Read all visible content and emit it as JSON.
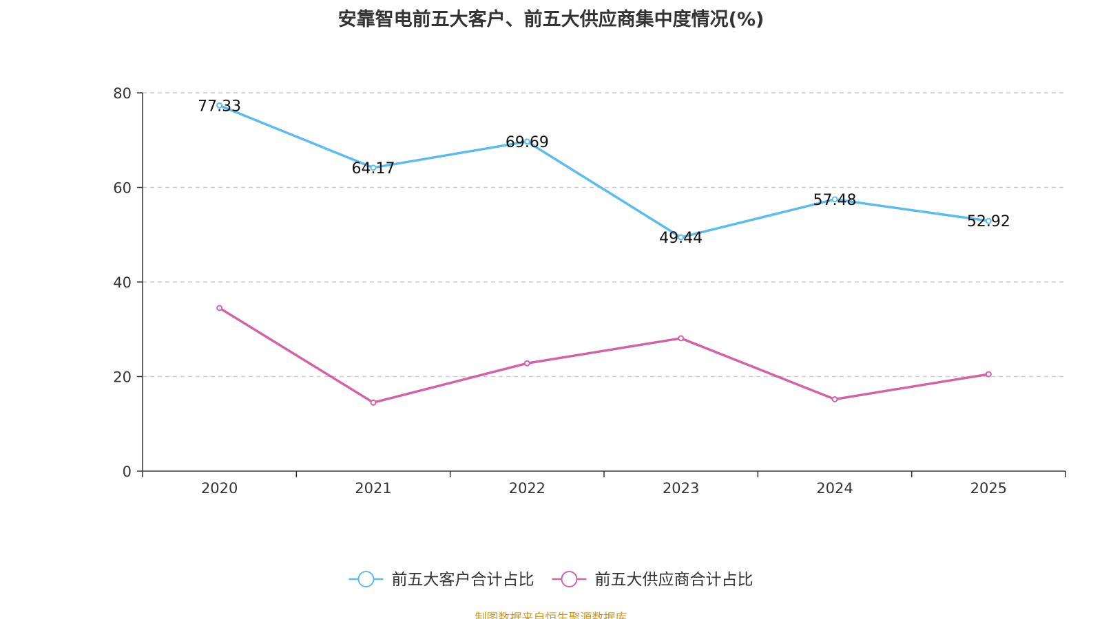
{
  "chart_data": {
    "type": "line",
    "title": "安靠智电前五大客户、前五大供应商集中度情况(%)",
    "categories": [
      "2020",
      "2021",
      "2022",
      "2023",
      "2024",
      "2025"
    ],
    "ylim": [
      0,
      80
    ],
    "yticks": [
      0,
      20,
      40,
      60,
      80
    ],
    "grid": true,
    "legend_position": "bottom-center",
    "series": [
      {
        "name": "前五大客户合计占比",
        "color": "#5bbcf0",
        "values": [
          77.33,
          64.17,
          69.69,
          49.44,
          57.48,
          52.92
        ],
        "labels": [
          "77.33",
          "64.17",
          "69.69",
          "49.44",
          "57.48",
          "52.92"
        ],
        "show_labels": true
      },
      {
        "name": "前五大供应商合计占比",
        "color": "#d462a6",
        "values": [
          34.5,
          14.5,
          22.8,
          28.1,
          15.2,
          20.5
        ],
        "show_labels": false
      }
    ]
  },
  "source_note": "制图数据来自恒生聚源数据库"
}
